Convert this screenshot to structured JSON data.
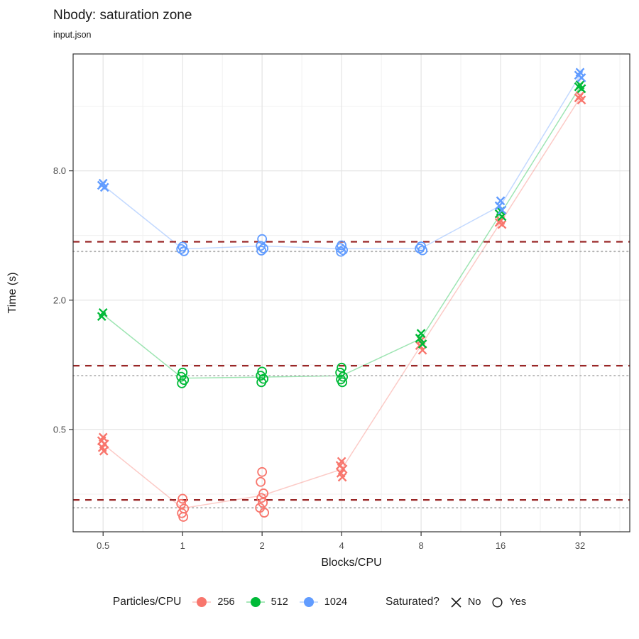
{
  "chart_data": {
    "type": "scatter",
    "title": "Nbody: saturation zone",
    "subtitle": "input.json",
    "xlabel": "Blocks/CPU",
    "ylabel": "Time (s)",
    "x_scale": "log2",
    "y_scale": "log",
    "x_ticks": [
      "0.5",
      "1",
      "2",
      "4",
      "8",
      "16",
      "32"
    ],
    "x_tick_values": [
      0.5,
      1,
      2,
      4,
      8,
      16,
      32
    ],
    "x_minor": [
      0.707,
      1.414,
      2.828,
      5.657,
      11.314,
      22.627,
      45.255
    ],
    "y_ticks": [
      "0.5",
      "2.0",
      "8.0"
    ],
    "y_tick_values": [
      0.5,
      2.0,
      8.0
    ],
    "y_minor": [
      0.25,
      1.0,
      4.0,
      16.0
    ],
    "x_domain": [
      0.385,
      49.35
    ],
    "y_domain": [
      0.167,
      28
    ],
    "grid": true,
    "legend_position": "bottom",
    "ref_line_colors": {
      "dashed": "#992626",
      "dotted": "#b0b0b0"
    },
    "legend": {
      "color_title": "Particles/CPU",
      "shape_title": "Saturated?",
      "no_label": "No",
      "yes_label": "Yes"
    },
    "series": [
      {
        "name": "256",
        "color": "#F8766D",
        "ref_dashed": 0.235,
        "ref_dotted": 0.216,
        "clusters": [
          {
            "x": 0.5,
            "saturated": false,
            "times": [
              0.46,
              0.443,
              0.428,
              0.412,
              0.397
            ]
          },
          {
            "x": 1,
            "saturated": true,
            "times": [
              0.238,
              0.225,
              0.214,
              0.204,
              0.196
            ]
          },
          {
            "x": 2,
            "saturated": true,
            "times": [
              0.317,
              0.285,
              0.252,
              0.24,
              0.228,
              0.216,
              0.205
            ]
          },
          {
            "x": 4,
            "saturated": false,
            "times": [
              0.355,
              0.34,
              0.327,
              0.313,
              0.3
            ]
          },
          {
            "x": 8,
            "saturated": false,
            "times": [
              1.3,
              1.23,
              1.17
            ]
          },
          {
            "x": 16,
            "saturated": false,
            "times": [
              4.7,
              4.6,
              4.5
            ]
          },
          {
            "x": 32,
            "saturated": false,
            "times": [
              17.9,
              17.5,
              17.1
            ]
          }
        ]
      },
      {
        "name": "512",
        "color": "#00BA38",
        "ref_dashed": 0.99,
        "ref_dotted": 0.89,
        "clusters": [
          {
            "x": 0.5,
            "saturated": false,
            "times": [
              1.75,
              1.68
            ]
          },
          {
            "x": 1,
            "saturated": true,
            "times": [
              0.92,
              0.88,
              0.85,
              0.82
            ]
          },
          {
            "x": 2,
            "saturated": true,
            "times": [
              0.93,
              0.89,
              0.86,
              0.83
            ]
          },
          {
            "x": 4,
            "saturated": true,
            "times": [
              0.97,
              0.92,
              0.88,
              0.855,
              0.83
            ]
          },
          {
            "x": 8,
            "saturated": false,
            "times": [
              1.4,
              1.33,
              1.25
            ]
          },
          {
            "x": 16,
            "saturated": false,
            "times": [
              5.2,
              5.05,
              4.9
            ]
          },
          {
            "x": 32,
            "saturated": false,
            "times": [
              20.1,
              19.7,
              19.3
            ]
          }
        ]
      },
      {
        "name": "1024",
        "color": "#619CFF",
        "ref_dashed": 3.74,
        "ref_dotted": 3.37,
        "clusters": [
          {
            "x": 0.5,
            "saturated": false,
            "times": [
              7.0,
              6.85,
              6.7
            ]
          },
          {
            "x": 1,
            "saturated": true,
            "times": [
              3.55,
              3.46,
              3.38
            ]
          },
          {
            "x": 2,
            "saturated": true,
            "times": [
              3.85,
              3.58,
              3.48,
              3.4
            ]
          },
          {
            "x": 4,
            "saturated": true,
            "times": [
              3.6,
              3.5,
              3.42,
              3.36
            ]
          },
          {
            "x": 8,
            "saturated": true,
            "times": [
              3.56,
              3.48,
              3.41
            ]
          },
          {
            "x": 16,
            "saturated": false,
            "times": [
              5.8,
              5.5,
              5.25
            ]
          },
          {
            "x": 32,
            "saturated": false,
            "times": [
              23.0,
              22.3,
              21.7
            ]
          }
        ]
      }
    ]
  }
}
